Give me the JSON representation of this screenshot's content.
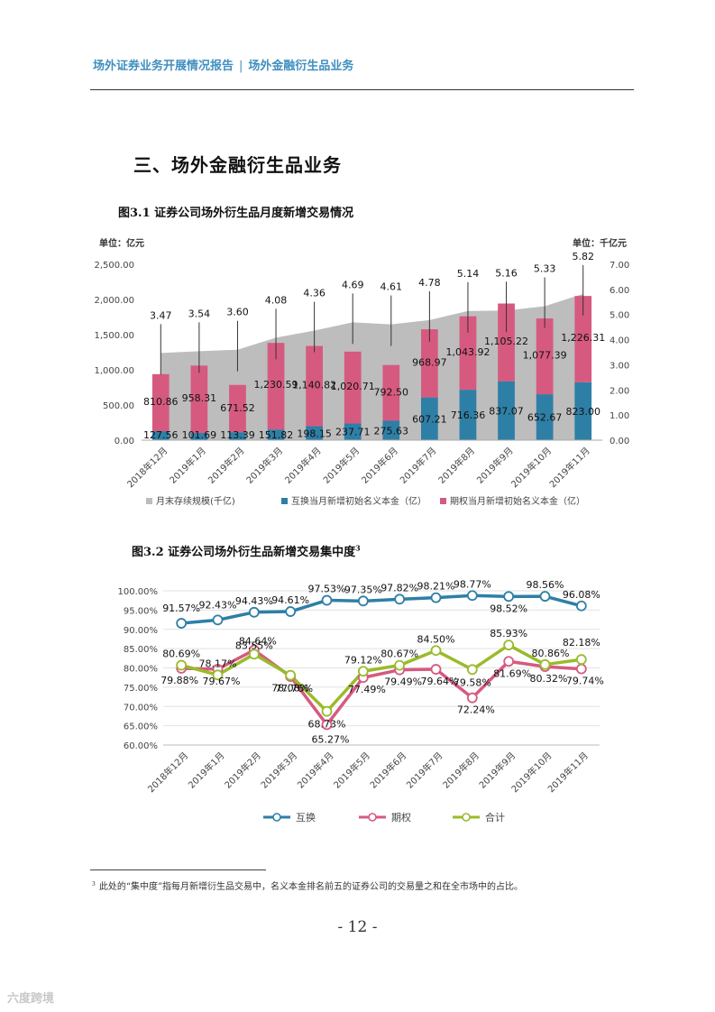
{
  "header": {
    "left": "场外证券业务开展情况报告",
    "separator": "|",
    "right": "场外金融衍生品业务"
  },
  "section_title": "三、场外金融衍生品业务",
  "figure1_title": "图3.1 证券公司场外衍生品月度新增交易情况",
  "figure2_title": "图3.2 证券公司场外衍生品新增交易集中度",
  "figure2_note_mark": "3",
  "footnote": {
    "mark": "3",
    "text": "此处的“集中度”指每月新增衍生品交易中，名义本金排名前五的证券公司的交易量之和在全市场中的占比。"
  },
  "page_number": "- 12 -",
  "watermark": "六度跨境",
  "colors": {
    "area": "#bdbdbd",
    "swap": "#2e7fa6",
    "option": "#d65a80",
    "total": "#99bb2a",
    "accent": "#3f8fbf"
  },
  "chart_data": [
    {
      "type": "bar",
      "unit_left": "单位：亿元",
      "unit_right": "单位：千亿元",
      "categories": [
        "2018年12月",
        "2019年1月",
        "2019年2月",
        "2019年3月",
        "2019年4月",
        "2019年5月",
        "2019年6月",
        "2019年7月",
        "2019年8月",
        "2019年9月",
        "2019年10月",
        "2019年11月"
      ],
      "left_ticks": [
        "2,500.00",
        "2,000.00",
        "1,500.00",
        "1,000.00",
        "500.00",
        "0.00"
      ],
      "right_ticks": [
        "7.00",
        "6.00",
        "5.00",
        "4.00",
        "3.00",
        "2.00",
        "1.00",
        "0.00"
      ],
      "ylim": [
        0,
        2500
      ],
      "y2lim": [
        0,
        7
      ],
      "series": [
        {
          "name": "月末存续规模(千亿)",
          "axis": "right",
          "kind": "area",
          "values": [
            3.47,
            3.54,
            3.6,
            4.08,
            4.36,
            4.69,
            4.61,
            4.78,
            5.14,
            5.16,
            5.33,
            5.82
          ],
          "labels": [
            "3.47",
            "3.54",
            "3.60",
            "4.08",
            "4.36",
            "4.69",
            "4.61",
            "4.78",
            "5.14",
            "5.16",
            "5.33",
            "5.82"
          ]
        },
        {
          "name": "互换当月新增初始名义本金（亿）",
          "axis": "left",
          "kind": "bar",
          "values": [
            127.56,
            101.69,
            113.39,
            151.82,
            198.15,
            237.71,
            275.63,
            607.21,
            716.36,
            837.07,
            652.67,
            823.0
          ],
          "labels": [
            "127.56",
            "101.69",
            "113.39",
            "151.82",
            "198.15",
            "237.71",
            "275.63",
            "607.21",
            "716.36",
            "837.07",
            "652.67",
            "823.00"
          ]
        },
        {
          "name": "期权当月新增初始名义本金（亿）",
          "axis": "left",
          "kind": "bar",
          "values": [
            810.86,
            958.31,
            671.52,
            1230.59,
            1140.82,
            1020.71,
            792.5,
            968.97,
            1043.92,
            1105.22,
            1077.39,
            1226.31
          ],
          "labels": [
            "810.86",
            "958.31",
            "671.52",
            "1,230.59",
            "1,140.82",
            "1,020.71",
            "792.50",
            "968.97",
            "1,043.92",
            "1,105.22",
            "1,077.39",
            "1,226.31"
          ]
        }
      ]
    },
    {
      "type": "line",
      "categories": [
        "2018年12月",
        "2019年1月",
        "2019年2月",
        "2019年3月",
        "2019年4月",
        "2019年5月",
        "2019年6月",
        "2019年7月",
        "2019年8月",
        "2019年9月",
        "2019年10月",
        "2019年11月"
      ],
      "y_ticks": [
        "100.00%",
        "95.00%",
        "90.00%",
        "85.00%",
        "80.00%",
        "75.00%",
        "70.00%",
        "65.00%",
        "60.00%"
      ],
      "ylim": [
        60,
        100
      ],
      "series": [
        {
          "name": "互换",
          "values": [
            91.57,
            92.43,
            94.43,
            94.61,
            97.53,
            97.35,
            97.82,
            98.21,
            98.77,
            98.52,
            98.56,
            96.08
          ],
          "labels": [
            "91.57%",
            "92.43%",
            "94.43%",
            "94.61%",
            "97.53%",
            "97.35%",
            "97.82%",
            "98.21%",
            "98.77%",
            "98.52%",
            "98.56%",
            "96.08%"
          ]
        },
        {
          "name": "期权",
          "values": [
            79.88,
            79.67,
            84.64,
            77.76,
            65.27,
            77.49,
            79.49,
            79.64,
            72.24,
            81.69,
            80.32,
            79.74
          ],
          "labels": [
            "79.88%",
            "79.67%",
            "84.64%",
            "77.76%",
            "65.27%",
            "77.49%",
            "79.49%",
            "79.64%",
            "72.24%",
            "81.69%",
            "80.32%",
            "79.74%"
          ]
        },
        {
          "name": "合计",
          "values": [
            80.69,
            78.17,
            83.55,
            78.08,
            68.73,
            79.12,
            80.67,
            84.5,
            79.58,
            85.93,
            80.86,
            82.18
          ],
          "labels": [
            "80.69%",
            "78.17%",
            "83.55%",
            "78.08%",
            "68.73%",
            "79.12%",
            "80.67%",
            "84.50%",
            "79.58%",
            "85.93%",
            "80.86%",
            "82.18%"
          ]
        }
      ]
    }
  ]
}
